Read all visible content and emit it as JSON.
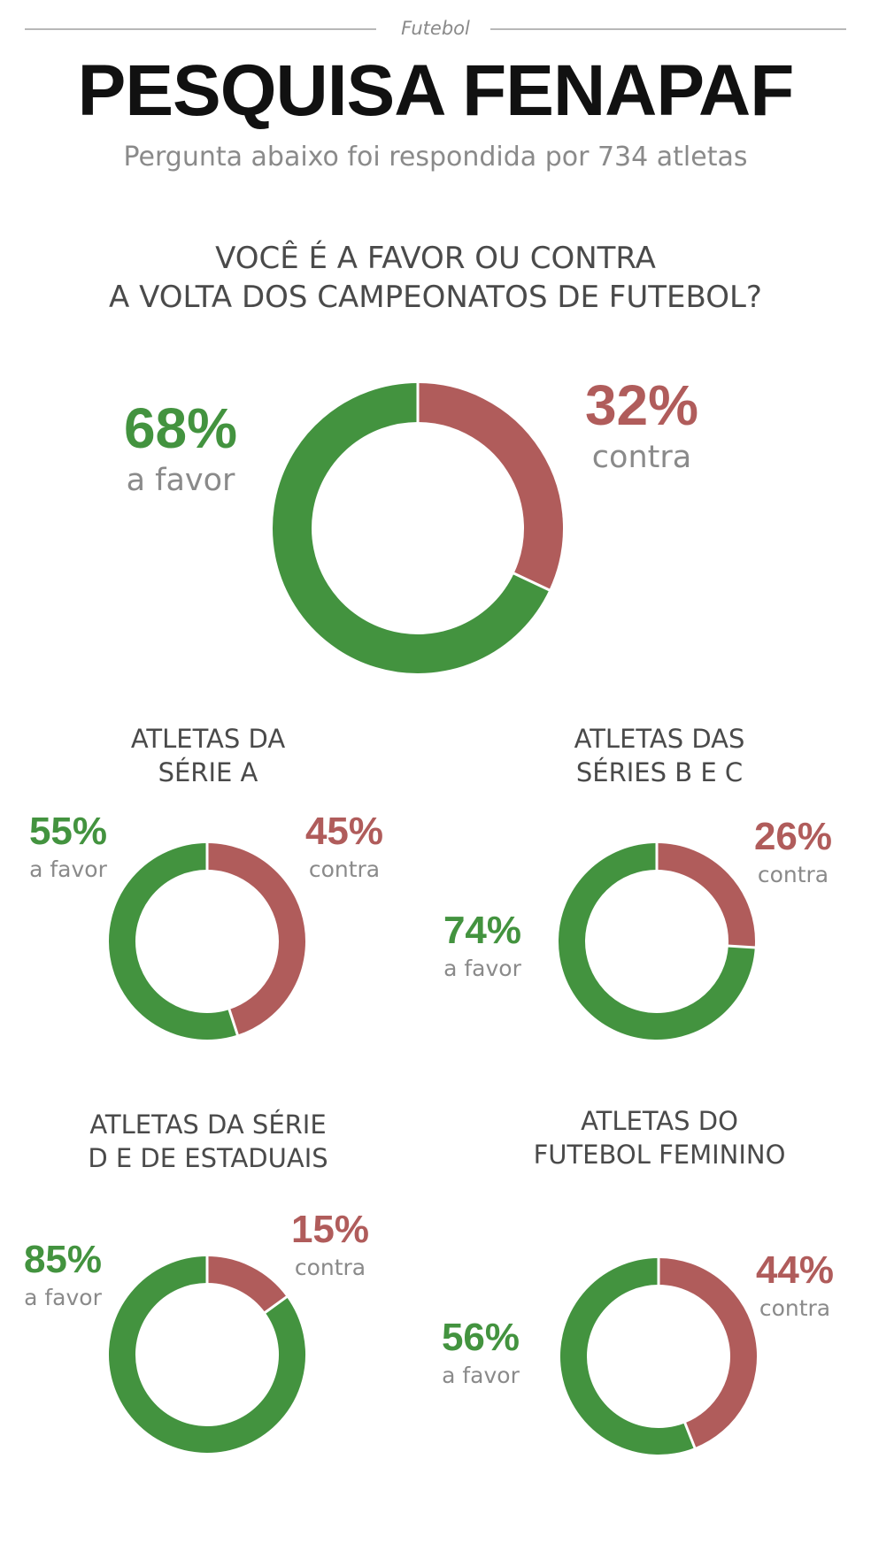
{
  "header": {
    "section": "Futebol",
    "title": "PESQUISA FENAPAF",
    "subtitle": "Pergunta abaixo foi respondida por 734 atletas"
  },
  "question": {
    "line1": "VOCÊ É A FAVOR OU CONTRA",
    "line2": "A VOLTA DOS CAMPEONATOS DE FUTEBOL?"
  },
  "colors": {
    "favor": "#43933f",
    "contra": "#b05c5b"
  },
  "chart_data": [
    {
      "type": "pie",
      "title": "",
      "categories": [
        "a favor",
        "contra"
      ],
      "values": [
        68,
        32
      ],
      "value_labels": [
        "68%",
        "32%"
      ]
    },
    {
      "type": "pie",
      "title_lines": [
        "ATLETAS DA",
        "SÉRIE A"
      ],
      "categories": [
        "a favor",
        "contra"
      ],
      "values": [
        55,
        45
      ],
      "value_labels": [
        "55%",
        "45%"
      ]
    },
    {
      "type": "pie",
      "title_lines": [
        "ATLETAS DAS",
        "SÉRIES B E C"
      ],
      "categories": [
        "a favor",
        "contra"
      ],
      "values": [
        74,
        26
      ],
      "value_labels": [
        "74%",
        "26%"
      ]
    },
    {
      "type": "pie",
      "title_lines": [
        "ATLETAS DA SÉRIE",
        "D E DE ESTADUAIS"
      ],
      "categories": [
        "a favor",
        "contra"
      ],
      "values": [
        85,
        15
      ],
      "value_labels": [
        "85%",
        "15%"
      ]
    },
    {
      "type": "pie",
      "title_lines": [
        "ATLETAS DO",
        "FUTEBOL FEMININO"
      ],
      "categories": [
        "a favor",
        "contra"
      ],
      "values": [
        56,
        44
      ],
      "value_labels": [
        "56%",
        "44%"
      ]
    }
  ]
}
